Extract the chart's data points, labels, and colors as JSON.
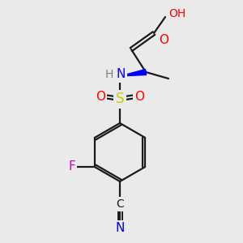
{
  "bg_color": "#eaeaea",
  "bond_color": "#1a1a1a",
  "atom_colors": {
    "O": "#ff0000",
    "N": "#0000ff",
    "S": "#cccc00",
    "F": "#cc00cc",
    "C_label": "#1a1a1a",
    "H": "#808080"
  },
  "figsize": [
    3.0,
    3.0
  ],
  "dpi": 100
}
